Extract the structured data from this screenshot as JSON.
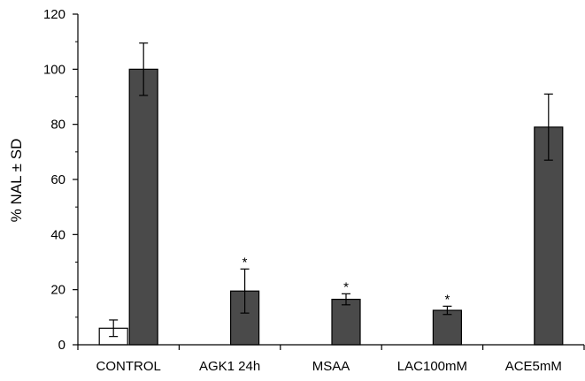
{
  "chart_data": {
    "type": "bar",
    "title": "",
    "xlabel": "",
    "ylabel": "% NAL ± SD",
    "ylim": [
      0,
      120
    ],
    "yticks": [
      "0",
      "20",
      "40",
      "60",
      "80",
      "100",
      "120"
    ],
    "categories": [
      "CONTROL",
      "AGK1 24h",
      "MSAA",
      "LAC100mM",
      "ACE5mM"
    ],
    "series": [
      {
        "color": "#ffffff",
        "values": [
          6,
          null,
          null,
          null,
          null
        ],
        "errors": [
          3,
          null,
          null,
          null,
          null
        ]
      },
      {
        "color": "#4a4a4a",
        "values": [
          100,
          19.5,
          16.5,
          12.5,
          79
        ],
        "errors": [
          9.5,
          8,
          2,
          1.5,
          12
        ]
      }
    ],
    "significance": [
      "",
      "*",
      "*",
      "*",
      ""
    ],
    "grid": false,
    "legend": "none"
  }
}
